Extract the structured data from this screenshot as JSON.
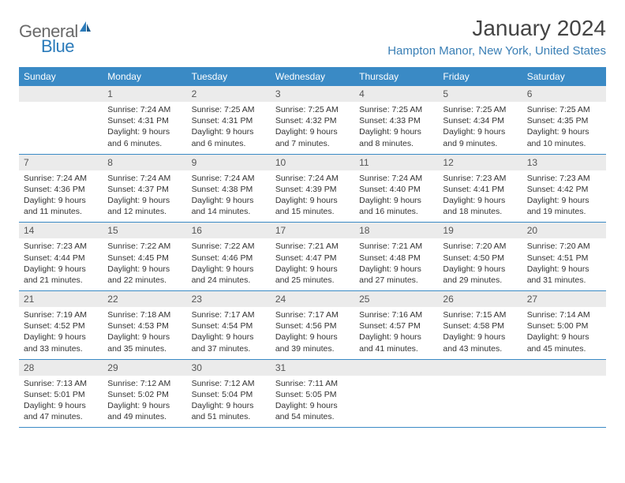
{
  "logo": {
    "text_general": "General",
    "text_blue": "Blue"
  },
  "title": "January 2024",
  "location": "Hampton Manor, New York, United States",
  "colors": {
    "header_bg": "#3a8ac5",
    "header_text": "#ffffff",
    "daynum_bg": "#ebebeb",
    "row_border": "#3a8ac5",
    "logo_gray": "#6a6a6a",
    "logo_blue": "#2b7bba",
    "location_color": "#3a7fb5"
  },
  "weekdays": [
    "Sunday",
    "Monday",
    "Tuesday",
    "Wednesday",
    "Thursday",
    "Friday",
    "Saturday"
  ],
  "weeks": [
    [
      null,
      {
        "n": "1",
        "sr": "7:24 AM",
        "ss": "4:31 PM",
        "dl": "9 hours and 6 minutes."
      },
      {
        "n": "2",
        "sr": "7:25 AM",
        "ss": "4:31 PM",
        "dl": "9 hours and 6 minutes."
      },
      {
        "n": "3",
        "sr": "7:25 AM",
        "ss": "4:32 PM",
        "dl": "9 hours and 7 minutes."
      },
      {
        "n": "4",
        "sr": "7:25 AM",
        "ss": "4:33 PM",
        "dl": "9 hours and 8 minutes."
      },
      {
        "n": "5",
        "sr": "7:25 AM",
        "ss": "4:34 PM",
        "dl": "9 hours and 9 minutes."
      },
      {
        "n": "6",
        "sr": "7:25 AM",
        "ss": "4:35 PM",
        "dl": "9 hours and 10 minutes."
      }
    ],
    [
      {
        "n": "7",
        "sr": "7:24 AM",
        "ss": "4:36 PM",
        "dl": "9 hours and 11 minutes."
      },
      {
        "n": "8",
        "sr": "7:24 AM",
        "ss": "4:37 PM",
        "dl": "9 hours and 12 minutes."
      },
      {
        "n": "9",
        "sr": "7:24 AM",
        "ss": "4:38 PM",
        "dl": "9 hours and 14 minutes."
      },
      {
        "n": "10",
        "sr": "7:24 AM",
        "ss": "4:39 PM",
        "dl": "9 hours and 15 minutes."
      },
      {
        "n": "11",
        "sr": "7:24 AM",
        "ss": "4:40 PM",
        "dl": "9 hours and 16 minutes."
      },
      {
        "n": "12",
        "sr": "7:23 AM",
        "ss": "4:41 PM",
        "dl": "9 hours and 18 minutes."
      },
      {
        "n": "13",
        "sr": "7:23 AM",
        "ss": "4:42 PM",
        "dl": "9 hours and 19 minutes."
      }
    ],
    [
      {
        "n": "14",
        "sr": "7:23 AM",
        "ss": "4:44 PM",
        "dl": "9 hours and 21 minutes."
      },
      {
        "n": "15",
        "sr": "7:22 AM",
        "ss": "4:45 PM",
        "dl": "9 hours and 22 minutes."
      },
      {
        "n": "16",
        "sr": "7:22 AM",
        "ss": "4:46 PM",
        "dl": "9 hours and 24 minutes."
      },
      {
        "n": "17",
        "sr": "7:21 AM",
        "ss": "4:47 PM",
        "dl": "9 hours and 25 minutes."
      },
      {
        "n": "18",
        "sr": "7:21 AM",
        "ss": "4:48 PM",
        "dl": "9 hours and 27 minutes."
      },
      {
        "n": "19",
        "sr": "7:20 AM",
        "ss": "4:50 PM",
        "dl": "9 hours and 29 minutes."
      },
      {
        "n": "20",
        "sr": "7:20 AM",
        "ss": "4:51 PM",
        "dl": "9 hours and 31 minutes."
      }
    ],
    [
      {
        "n": "21",
        "sr": "7:19 AM",
        "ss": "4:52 PM",
        "dl": "9 hours and 33 minutes."
      },
      {
        "n": "22",
        "sr": "7:18 AM",
        "ss": "4:53 PM",
        "dl": "9 hours and 35 minutes."
      },
      {
        "n": "23",
        "sr": "7:17 AM",
        "ss": "4:54 PM",
        "dl": "9 hours and 37 minutes."
      },
      {
        "n": "24",
        "sr": "7:17 AM",
        "ss": "4:56 PM",
        "dl": "9 hours and 39 minutes."
      },
      {
        "n": "25",
        "sr": "7:16 AM",
        "ss": "4:57 PM",
        "dl": "9 hours and 41 minutes."
      },
      {
        "n": "26",
        "sr": "7:15 AM",
        "ss": "4:58 PM",
        "dl": "9 hours and 43 minutes."
      },
      {
        "n": "27",
        "sr": "7:14 AM",
        "ss": "5:00 PM",
        "dl": "9 hours and 45 minutes."
      }
    ],
    [
      {
        "n": "28",
        "sr": "7:13 AM",
        "ss": "5:01 PM",
        "dl": "9 hours and 47 minutes."
      },
      {
        "n": "29",
        "sr": "7:12 AM",
        "ss": "5:02 PM",
        "dl": "9 hours and 49 minutes."
      },
      {
        "n": "30",
        "sr": "7:12 AM",
        "ss": "5:04 PM",
        "dl": "9 hours and 51 minutes."
      },
      {
        "n": "31",
        "sr": "7:11 AM",
        "ss": "5:05 PM",
        "dl": "9 hours and 54 minutes."
      },
      null,
      null,
      null
    ]
  ],
  "labels": {
    "sunrise": "Sunrise:",
    "sunset": "Sunset:",
    "daylight": "Daylight:"
  }
}
